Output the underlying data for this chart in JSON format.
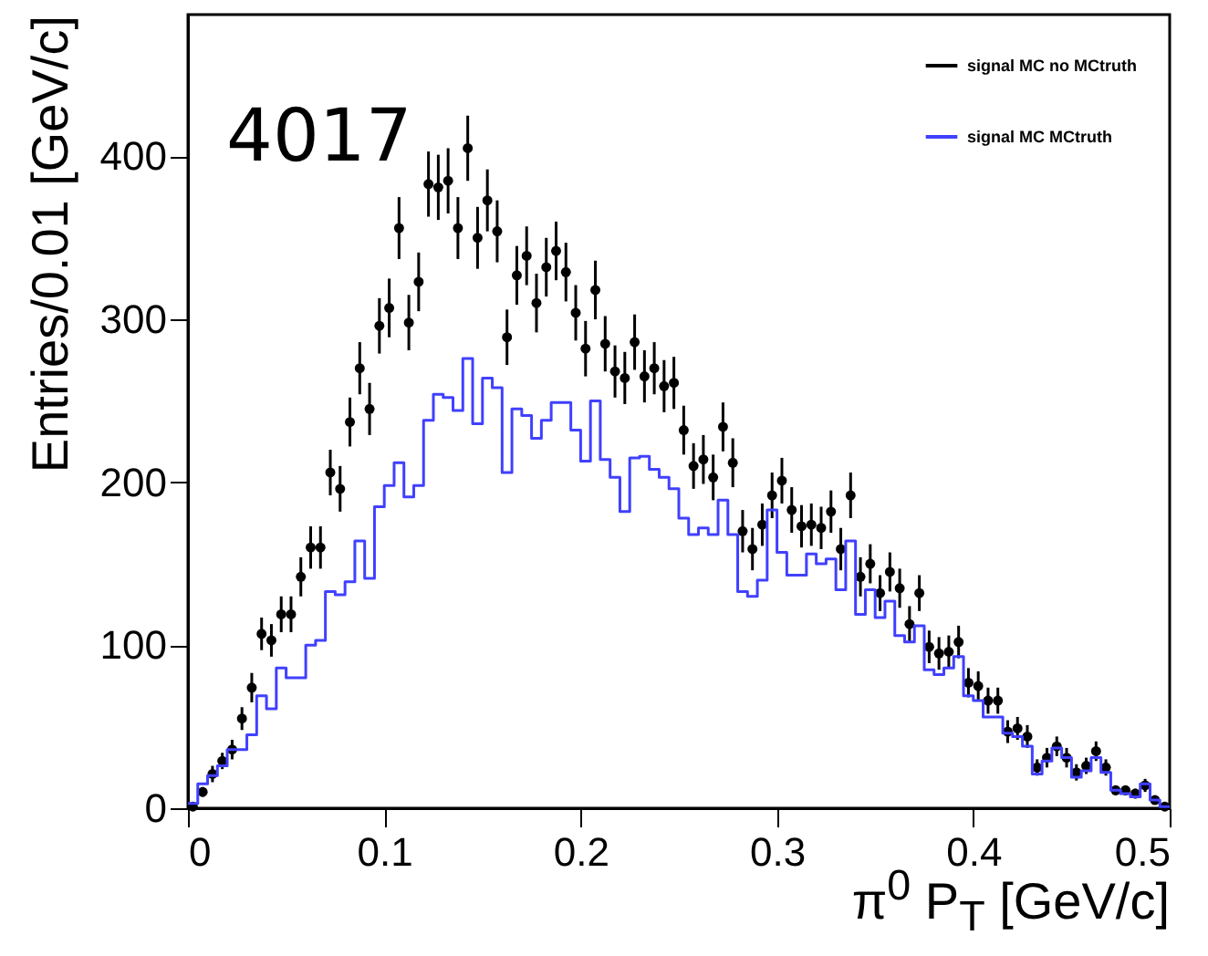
{
  "chart_data": {
    "type": "histogram",
    "annotations": [
      "4017"
    ],
    "xlabel": "π$^{0}$ P$_{T}$ [GeV/c]",
    "ylabel": "Entries/0.01 [GeV/c]",
    "xlim": [
      0,
      0.5
    ],
    "xticks": [
      0,
      0.1,
      0.2,
      0.3,
      0.4,
      0.5
    ],
    "ylim": [
      0,
      487
    ],
    "yticks": [
      0,
      100,
      200,
      300,
      400
    ],
    "legend": "top right",
    "grid": false,
    "marker": "circle",
    "bins": [
      0,
      0.005,
      0.01,
      0.015,
      0.02,
      0.025,
      0.03,
      0.035,
      0.04,
      0.045,
      0.05,
      0.055,
      0.06,
      0.065,
      0.07,
      0.075,
      0.08,
      0.085,
      0.09,
      0.095,
      0.1,
      0.105,
      0.11,
      0.115,
      0.12,
      0.125,
      0.13,
      0.135,
      0.14,
      0.145,
      0.15,
      0.155,
      0.16,
      0.165,
      0.17,
      0.175,
      0.18,
      0.185,
      0.19,
      0.195,
      0.2,
      0.205,
      0.21,
      0.215,
      0.22,
      0.225,
      0.23,
      0.235,
      0.24,
      0.245,
      0.25,
      0.255,
      0.26,
      0.265,
      0.27,
      0.275,
      0.28,
      0.285,
      0.29,
      0.295,
      0.3,
      0.305,
      0.31,
      0.315,
      0.32,
      0.325,
      0.33,
      0.335,
      0.34,
      0.345,
      0.35,
      0.355,
      0.36,
      0.365,
      0.37,
      0.375,
      0.38,
      0.385,
      0.39,
      0.395,
      0.4,
      0.405,
      0.41,
      0.415,
      0.42,
      0.425,
      0.43,
      0.435,
      0.44,
      0.445,
      0.45,
      0.455,
      0.46,
      0.465,
      0.47,
      0.475,
      0.48,
      0.485,
      0.49,
      0.495,
      0.5
    ],
    "series": [
      {
        "name": "signal MC no MCtruth",
        "type": "scatter",
        "color": "#000000",
        "x": [
          0.0025,
          0.0075,
          0.0125,
          0.0175,
          0.0225,
          0.0275,
          0.0325,
          0.0375,
          0.0425,
          0.0475,
          0.0525,
          0.0575,
          0.0625,
          0.0675,
          0.0725,
          0.0775,
          0.0825,
          0.0875,
          0.0925,
          0.0975,
          0.1025,
          0.1075,
          0.1125,
          0.1175,
          0.1225,
          0.1275,
          0.1325,
          0.1375,
          0.1425,
          0.1475,
          0.1525,
          0.1575,
          0.1625,
          0.1675,
          0.1725,
          0.1775,
          0.1825,
          0.1875,
          0.1925,
          0.1975,
          0.2025,
          0.2075,
          0.2125,
          0.2175,
          0.2225,
          0.2275,
          0.2325,
          0.2375,
          0.2425,
          0.2475,
          0.2525,
          0.2575,
          0.2625,
          0.2675,
          0.2725,
          0.2775,
          0.2825,
          0.2875,
          0.2925,
          0.2975,
          0.3025,
          0.3075,
          0.3125,
          0.3175,
          0.3225,
          0.3275,
          0.3325,
          0.3375,
          0.3425,
          0.3475,
          0.3525,
          0.3575,
          0.3625,
          0.3675,
          0.3725,
          0.3775,
          0.3825,
          0.3875,
          0.3925,
          0.3975,
          0.4025,
          0.4075,
          0.4125,
          0.4175,
          0.4225,
          0.4275,
          0.4325,
          0.4375,
          0.4425,
          0.4475,
          0.4525,
          0.4575,
          0.4625,
          0.4675,
          0.4725,
          0.4775,
          0.4825,
          0.4875,
          0.4925,
          0.4975
        ],
        "values": [
          1,
          10,
          21,
          29,
          36,
          55,
          74,
          107,
          103,
          119,
          119,
          142,
          160,
          160,
          206,
          196,
          237,
          270,
          245,
          296,
          307,
          356,
          298,
          323,
          383,
          381,
          385,
          356,
          405,
          350,
          373,
          354,
          289,
          327,
          339,
          310,
          332,
          342,
          329,
          304,
          282,
          318,
          285,
          268,
          264,
          286,
          265,
          270,
          259,
          261,
          232,
          210,
          214,
          203,
          234,
          212,
          170,
          159,
          174,
          192,
          201,
          183,
          173,
          174,
          172,
          182,
          159,
          192,
          142,
          150,
          132,
          145,
          135,
          113,
          132,
          99,
          95,
          96,
          102,
          77,
          75,
          66,
          66,
          47,
          49,
          44,
          25,
          31,
          38,
          31,
          22,
          26,
          35,
          25,
          11,
          11,
          9,
          14,
          5,
          1
        ],
        "errors": [
          1,
          3,
          5,
          5,
          6,
          7,
          9,
          10,
          10,
          11,
          11,
          12,
          13,
          13,
          14,
          14,
          15,
          16,
          16,
          17,
          18,
          19,
          17,
          18,
          20,
          20,
          20,
          19,
          20,
          19,
          19,
          19,
          17,
          18,
          18,
          18,
          18,
          18,
          18,
          17,
          17,
          18,
          17,
          16,
          16,
          17,
          16,
          16,
          16,
          16,
          15,
          14,
          15,
          14,
          15,
          15,
          13,
          13,
          13,
          14,
          14,
          14,
          13,
          13,
          13,
          13,
          13,
          14,
          12,
          12,
          11,
          12,
          12,
          11,
          11,
          10,
          10,
          10,
          10,
          9,
          9,
          8,
          8,
          7,
          7,
          7,
          5,
          6,
          6,
          6,
          5,
          5,
          6,
          5,
          3,
          3,
          3,
          4,
          2,
          1
        ]
      },
      {
        "name": "signal MC MCtruth",
        "type": "histogram",
        "color": "#4040ff",
        "values": [
          3,
          15,
          20,
          26,
          36,
          36,
          45,
          69,
          61,
          86,
          80,
          80,
          100,
          103,
          133,
          131,
          139,
          164,
          141,
          185,
          198,
          212,
          191,
          198,
          238,
          254,
          252,
          244,
          276,
          236,
          264,
          258,
          206,
          245,
          241,
          227,
          238,
          249,
          249,
          232,
          213,
          250,
          214,
          203,
          182,
          215,
          216,
          208,
          203,
          196,
          178,
          168,
          172,
          168,
          189,
          168,
          133,
          130,
          140,
          183,
          157,
          143,
          143,
          156,
          150,
          153,
          134,
          164,
          119,
          134,
          117,
          127,
          106,
          102,
          112,
          85,
          82,
          86,
          93,
          69,
          66,
          56,
          56,
          46,
          44,
          38,
          21,
          29,
          37,
          31,
          19,
          23,
          31,
          22,
          11,
          9,
          7,
          15,
          5,
          1
        ]
      }
    ]
  }
}
